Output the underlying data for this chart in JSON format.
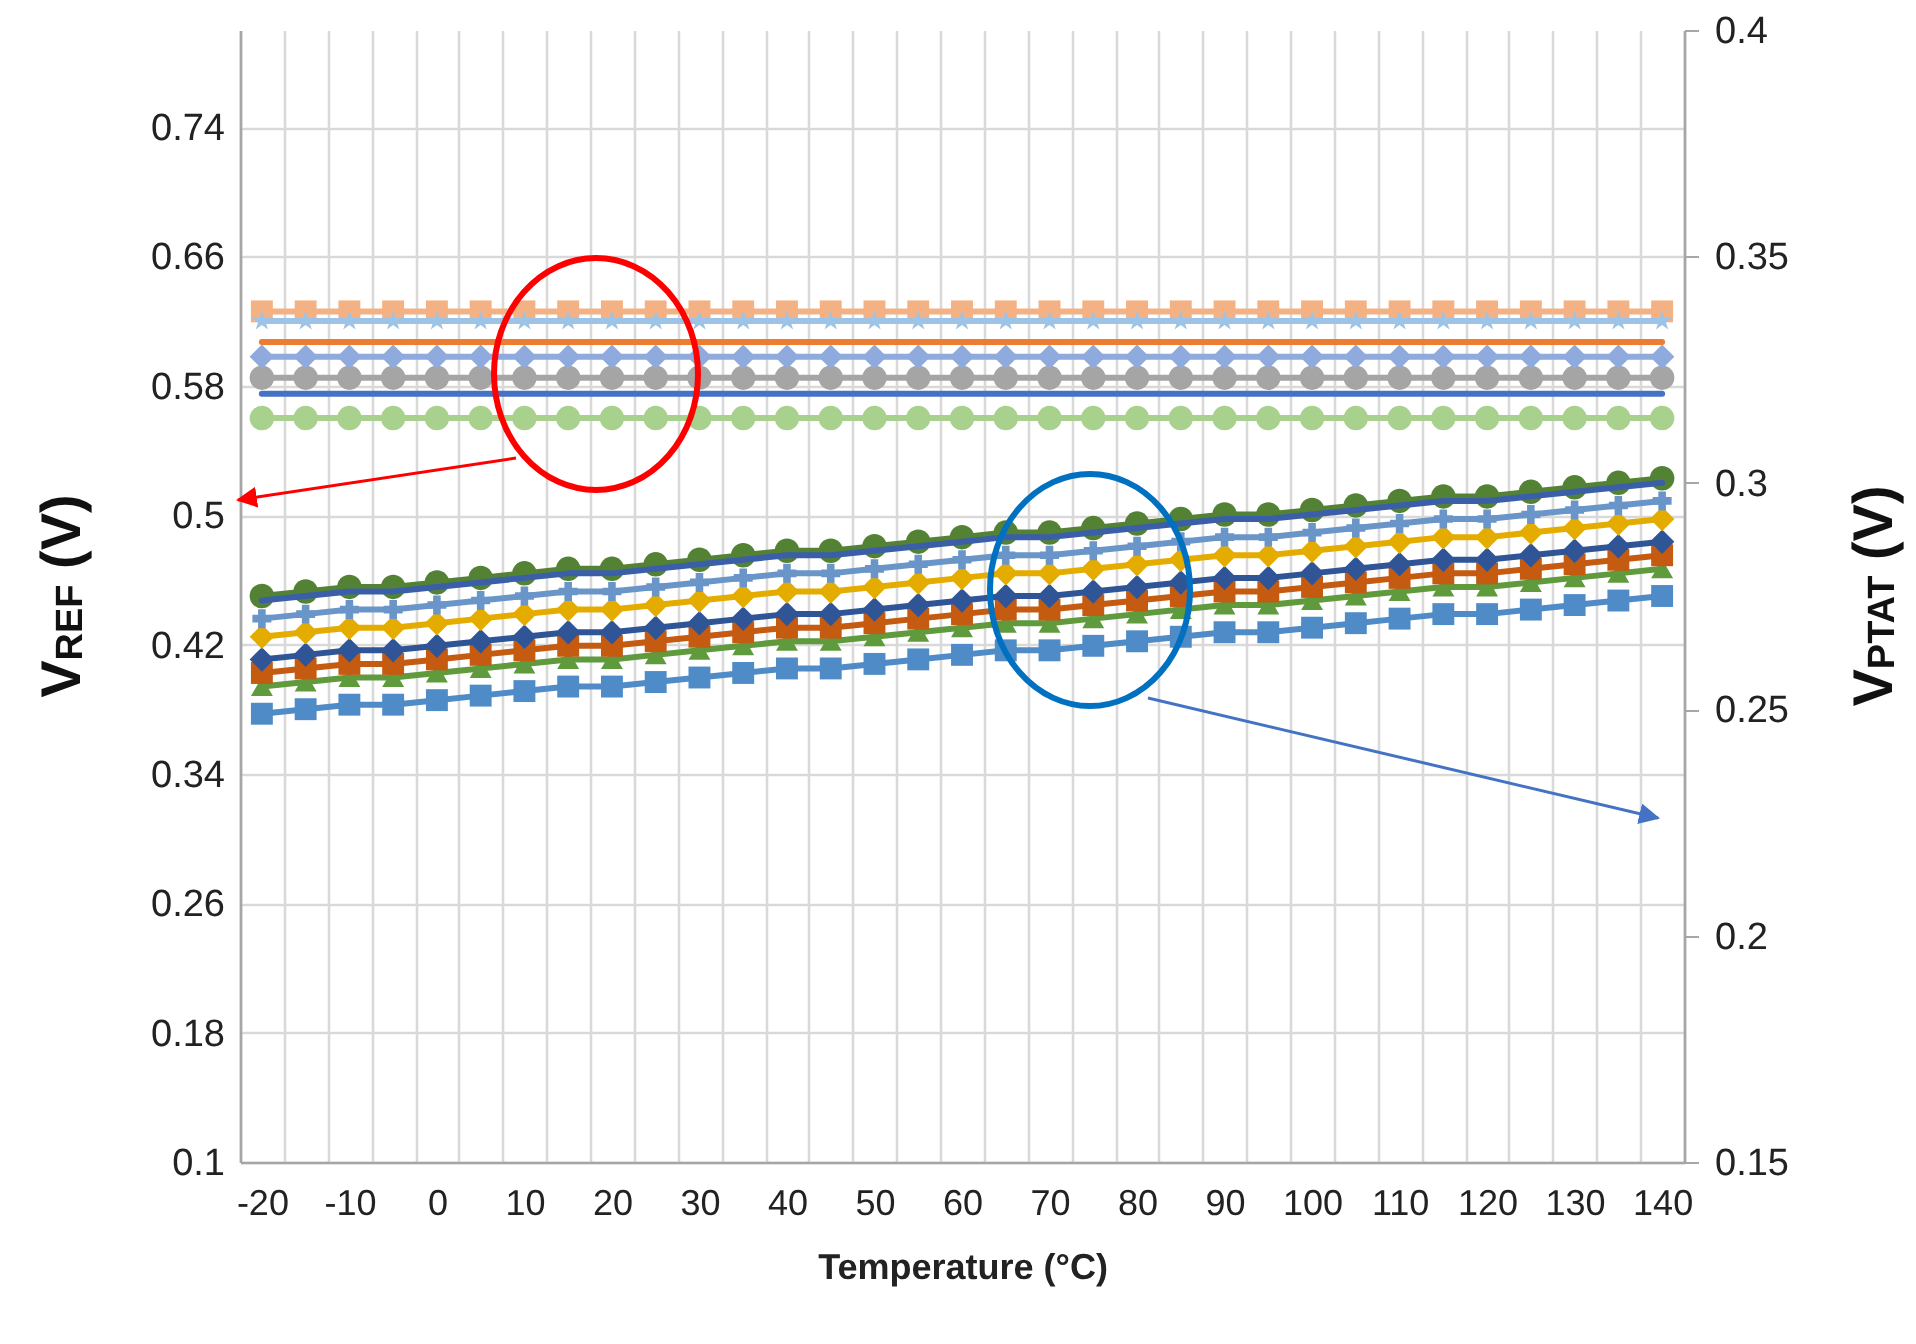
{
  "chart_data": {
    "type": "line",
    "xlabel": "Temperature (°C)",
    "ylabel": "V$_{REF}$ (V)",
    "y2label": "V$_{PTAT}$ (V)",
    "categories": [
      "-20",
      null,
      "-10",
      null,
      "0",
      null,
      "10",
      null,
      "20",
      null,
      "30",
      null,
      "40",
      null,
      "50",
      null,
      "60",
      null,
      "70",
      null,
      "80",
      null,
      "90",
      null,
      "100",
      null,
      "110",
      null,
      "120",
      null,
      "130",
      null,
      "140"
    ],
    "ylim": [
      0.1,
      0.8
    ],
    "yticks": [
      0.1,
      0.18,
      0.26,
      0.34,
      0.42,
      0.5,
      0.58,
      0.66,
      0.74
    ],
    "y2lim": [
      0.15,
      0.4
    ],
    "y2ticks": [
      0.15,
      0.2,
      0.25,
      0.3,
      0.35,
      0.4
    ],
    "grid": true,
    "series": [
      {
        "color": "#a9d18e",
        "marker": "circle",
        "values": [
          0.56,
          0.56,
          0.56,
          0.56,
          0.56,
          0.56,
          0.56,
          0.56,
          0.56,
          0.56,
          0.56,
          0.56,
          0.56,
          0.56,
          0.56,
          0.56,
          0.56,
          0.56,
          0.56,
          0.56,
          0.56,
          0.56,
          0.56,
          0.56,
          0.56,
          0.56,
          0.56,
          0.56,
          0.56,
          0.56,
          0.56,
          0.56,
          0.56
        ]
      },
      {
        "color": "#4472c4",
        "marker": "none",
        "values": [
          0.575,
          0.575,
          0.575,
          0.575,
          0.575,
          0.575,
          0.575,
          0.575,
          0.575,
          0.575,
          0.575,
          0.575,
          0.575,
          0.575,
          0.575,
          0.575,
          0.575,
          0.575,
          0.575,
          0.575,
          0.575,
          0.575,
          0.575,
          0.575,
          0.575,
          0.575,
          0.575,
          0.575,
          0.575,
          0.575,
          0.575,
          0.575,
          0.575
        ]
      },
      {
        "color": "#a5a5a5",
        "marker": "circle",
        "values": [
          0.585,
          0.585,
          0.585,
          0.585,
          0.585,
          0.585,
          0.585,
          0.585,
          0.585,
          0.585,
          0.585,
          0.585,
          0.585,
          0.585,
          0.585,
          0.585,
          0.585,
          0.585,
          0.585,
          0.585,
          0.585,
          0.585,
          0.585,
          0.585,
          0.585,
          0.585,
          0.585,
          0.585,
          0.585,
          0.585,
          0.585,
          0.585,
          0.585
        ]
      },
      {
        "color": "#8faadc",
        "marker": "diamond",
        "values": [
          0.598,
          0.598,
          0.598,
          0.598,
          0.598,
          0.598,
          0.598,
          0.598,
          0.598,
          0.598,
          0.598,
          0.598,
          0.598,
          0.598,
          0.598,
          0.598,
          0.598,
          0.598,
          0.598,
          0.598,
          0.598,
          0.598,
          0.598,
          0.598,
          0.598,
          0.598,
          0.598,
          0.598,
          0.598,
          0.598,
          0.598,
          0.598,
          0.598
        ]
      },
      {
        "color": "#ed7d31",
        "marker": "none",
        "values": [
          0.607,
          0.607,
          0.607,
          0.607,
          0.607,
          0.607,
          0.607,
          0.607,
          0.607,
          0.607,
          0.607,
          0.607,
          0.607,
          0.607,
          0.607,
          0.607,
          0.607,
          0.607,
          0.607,
          0.607,
          0.607,
          0.607,
          0.607,
          0.607,
          0.607,
          0.607,
          0.607,
          0.607,
          0.607,
          0.607,
          0.607,
          0.607,
          0.607
        ]
      },
      {
        "color": "#f4b183",
        "marker": "square",
        "values": [
          0.626,
          0.626,
          0.626,
          0.626,
          0.626,
          0.626,
          0.626,
          0.626,
          0.626,
          0.626,
          0.626,
          0.626,
          0.626,
          0.626,
          0.626,
          0.626,
          0.626,
          0.626,
          0.626,
          0.626,
          0.626,
          0.626,
          0.626,
          0.626,
          0.626,
          0.626,
          0.626,
          0.626,
          0.626,
          0.626,
          0.626,
          0.626,
          0.626
        ]
      },
      {
        "color": "#9dc3e6",
        "marker": "star",
        "values": [
          0.62,
          0.62,
          0.62,
          0.62,
          0.62,
          0.62,
          0.62,
          0.62,
          0.62,
          0.62,
          0.62,
          0.62,
          0.62,
          0.62,
          0.62,
          0.62,
          0.62,
          0.62,
          0.62,
          0.62,
          0.62,
          0.62,
          0.62,
          0.62,
          0.62,
          0.62,
          0.62,
          0.62,
          0.62,
          0.62,
          0.62,
          0.62,
          0.62
        ]
      },
      {
        "color": "#4f8bc6",
        "marker": "square",
        "axis": "y2",
        "values": [
          0.249,
          0.25,
          0.251,
          0.251,
          0.252,
          0.253,
          0.254,
          0.255,
          0.255,
          0.256,
          0.257,
          0.258,
          0.259,
          0.259,
          0.26,
          0.261,
          0.262,
          0.263,
          0.263,
          0.264,
          0.265,
          0.266,
          0.267,
          0.267,
          0.268,
          0.269,
          0.27,
          0.271,
          0.271,
          0.272,
          0.273,
          0.274,
          0.275
        ]
      },
      {
        "color": "#5f9a3c",
        "marker": "triangle",
        "axis": "y2",
        "values": [
          0.255,
          0.256,
          0.257,
          0.257,
          0.258,
          0.259,
          0.26,
          0.261,
          0.261,
          0.262,
          0.263,
          0.264,
          0.265,
          0.265,
          0.266,
          0.267,
          0.268,
          0.269,
          0.269,
          0.27,
          0.271,
          0.272,
          0.273,
          0.273,
          0.274,
          0.275,
          0.276,
          0.277,
          0.277,
          0.278,
          0.279,
          0.28,
          0.281
        ]
      },
      {
        "color": "#c55a11",
        "marker": "square",
        "axis": "y2",
        "values": [
          0.258,
          0.259,
          0.26,
          0.26,
          0.261,
          0.262,
          0.263,
          0.264,
          0.264,
          0.265,
          0.266,
          0.267,
          0.268,
          0.268,
          0.269,
          0.27,
          0.271,
          0.272,
          0.272,
          0.273,
          0.274,
          0.275,
          0.276,
          0.276,
          0.277,
          0.278,
          0.279,
          0.28,
          0.28,
          0.281,
          0.282,
          0.283,
          0.284
        ]
      },
      {
        "color": "#2f5597",
        "marker": "diamond",
        "axis": "y2",
        "values": [
          0.261,
          0.262,
          0.263,
          0.263,
          0.264,
          0.265,
          0.266,
          0.267,
          0.267,
          0.268,
          0.269,
          0.27,
          0.271,
          0.271,
          0.272,
          0.273,
          0.274,
          0.275,
          0.275,
          0.276,
          0.277,
          0.278,
          0.279,
          0.279,
          0.28,
          0.281,
          0.282,
          0.283,
          0.283,
          0.284,
          0.285,
          0.286,
          0.287
        ]
      },
      {
        "color": "#e5ac00",
        "marker": "diamond",
        "axis": "y2",
        "values": [
          0.266,
          0.267,
          0.268,
          0.268,
          0.269,
          0.27,
          0.271,
          0.272,
          0.272,
          0.273,
          0.274,
          0.275,
          0.276,
          0.276,
          0.277,
          0.278,
          0.279,
          0.28,
          0.28,
          0.281,
          0.282,
          0.283,
          0.284,
          0.284,
          0.285,
          0.286,
          0.287,
          0.288,
          0.288,
          0.289,
          0.29,
          0.291,
          0.292
        ]
      },
      {
        "color": "#6a95c8",
        "marker": "cross",
        "axis": "y2",
        "values": [
          0.27,
          0.271,
          0.272,
          0.272,
          0.273,
          0.274,
          0.275,
          0.276,
          0.276,
          0.277,
          0.278,
          0.279,
          0.28,
          0.28,
          0.281,
          0.282,
          0.283,
          0.284,
          0.284,
          0.285,
          0.286,
          0.287,
          0.288,
          0.288,
          0.289,
          0.29,
          0.291,
          0.292,
          0.292,
          0.293,
          0.294,
          0.295,
          0.296
        ]
      },
      {
        "color": "#548235",
        "marker": "circle",
        "axis": "y2",
        "values": [
          0.275,
          0.276,
          0.277,
          0.277,
          0.278,
          0.279,
          0.28,
          0.281,
          0.281,
          0.282,
          0.283,
          0.284,
          0.285,
          0.285,
          0.286,
          0.287,
          0.288,
          0.289,
          0.289,
          0.29,
          0.291,
          0.292,
          0.293,
          0.293,
          0.294,
          0.295,
          0.296,
          0.297,
          0.297,
          0.298,
          0.299,
          0.3,
          0.301
        ]
      },
      {
        "color": "#3a5fa8",
        "marker": "none",
        "axis": "y2",
        "values": [
          0.274,
          0.275,
          0.276,
          0.276,
          0.277,
          0.278,
          0.279,
          0.28,
          0.28,
          0.281,
          0.282,
          0.283,
          0.284,
          0.284,
          0.285,
          0.286,
          0.287,
          0.288,
          0.288,
          0.289,
          0.29,
          0.291,
          0.292,
          0.292,
          0.293,
          0.294,
          0.295,
          0.296,
          0.296,
          0.297,
          0.298,
          0.299,
          0.3
        ]
      }
    ]
  }
}
